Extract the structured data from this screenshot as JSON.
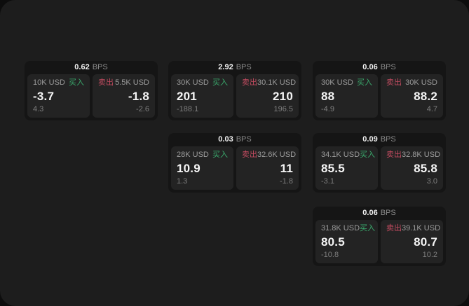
{
  "colors": {
    "buy_green": "#3aa96c",
    "sell_red": "#c24b60",
    "page_bg": "#1d1d1d",
    "card_bg": "#151515",
    "panel_bg": "#232323",
    "backdrop": "#0d0d0d"
  },
  "cards": [
    {
      "bps": "0.62",
      "bps_unit": "BPS",
      "buy": {
        "amount": "10K USD",
        "side": "买入",
        "value": "-3.7",
        "sub": "4.3"
      },
      "sell": {
        "side": "卖出",
        "amount": "5.5K USD",
        "value": "-1.8",
        "sub": "-2.6"
      }
    },
    {
      "bps": "2.92",
      "bps_unit": "BPS",
      "buy": {
        "amount": "30K USD",
        "side": "买入",
        "value": "201",
        "sub": "-188.1"
      },
      "sell": {
        "side": "卖出",
        "amount": "30.1K USD",
        "value": "210",
        "sub": "196.5"
      }
    },
    {
      "bps": "0.06",
      "bps_unit": "BPS",
      "buy": {
        "amount": "30K USD",
        "side": "买入",
        "value": "88",
        "sub": "-4.9"
      },
      "sell": {
        "side": "卖出",
        "amount": "30K USD",
        "value": "88.2",
        "sub": "4.7"
      }
    },
    {
      "bps": "0.03",
      "bps_unit": "BPS",
      "buy": {
        "amount": "28K USD",
        "side": "买入",
        "value": "10.9",
        "sub": "1.3"
      },
      "sell": {
        "side": "卖出",
        "amount": "32.6K USD",
        "value": "11",
        "sub": "-1.8"
      }
    },
    {
      "bps": "0.09",
      "bps_unit": "BPS",
      "buy": {
        "amount": "34.1K USD",
        "side": "买入",
        "value": "85.5",
        "sub": "-3.1"
      },
      "sell": {
        "side": "卖出",
        "amount": "32.8K USD",
        "value": "85.8",
        "sub": "3.0"
      }
    },
    {
      "bps": "0.06",
      "bps_unit": "BPS",
      "buy": {
        "amount": "31.8K USD",
        "side": "买入",
        "value": "80.5",
        "sub": "-10.8"
      },
      "sell": {
        "side": "卖出",
        "amount": "39.1K USD",
        "value": "80.7",
        "sub": "10.2"
      }
    }
  ]
}
